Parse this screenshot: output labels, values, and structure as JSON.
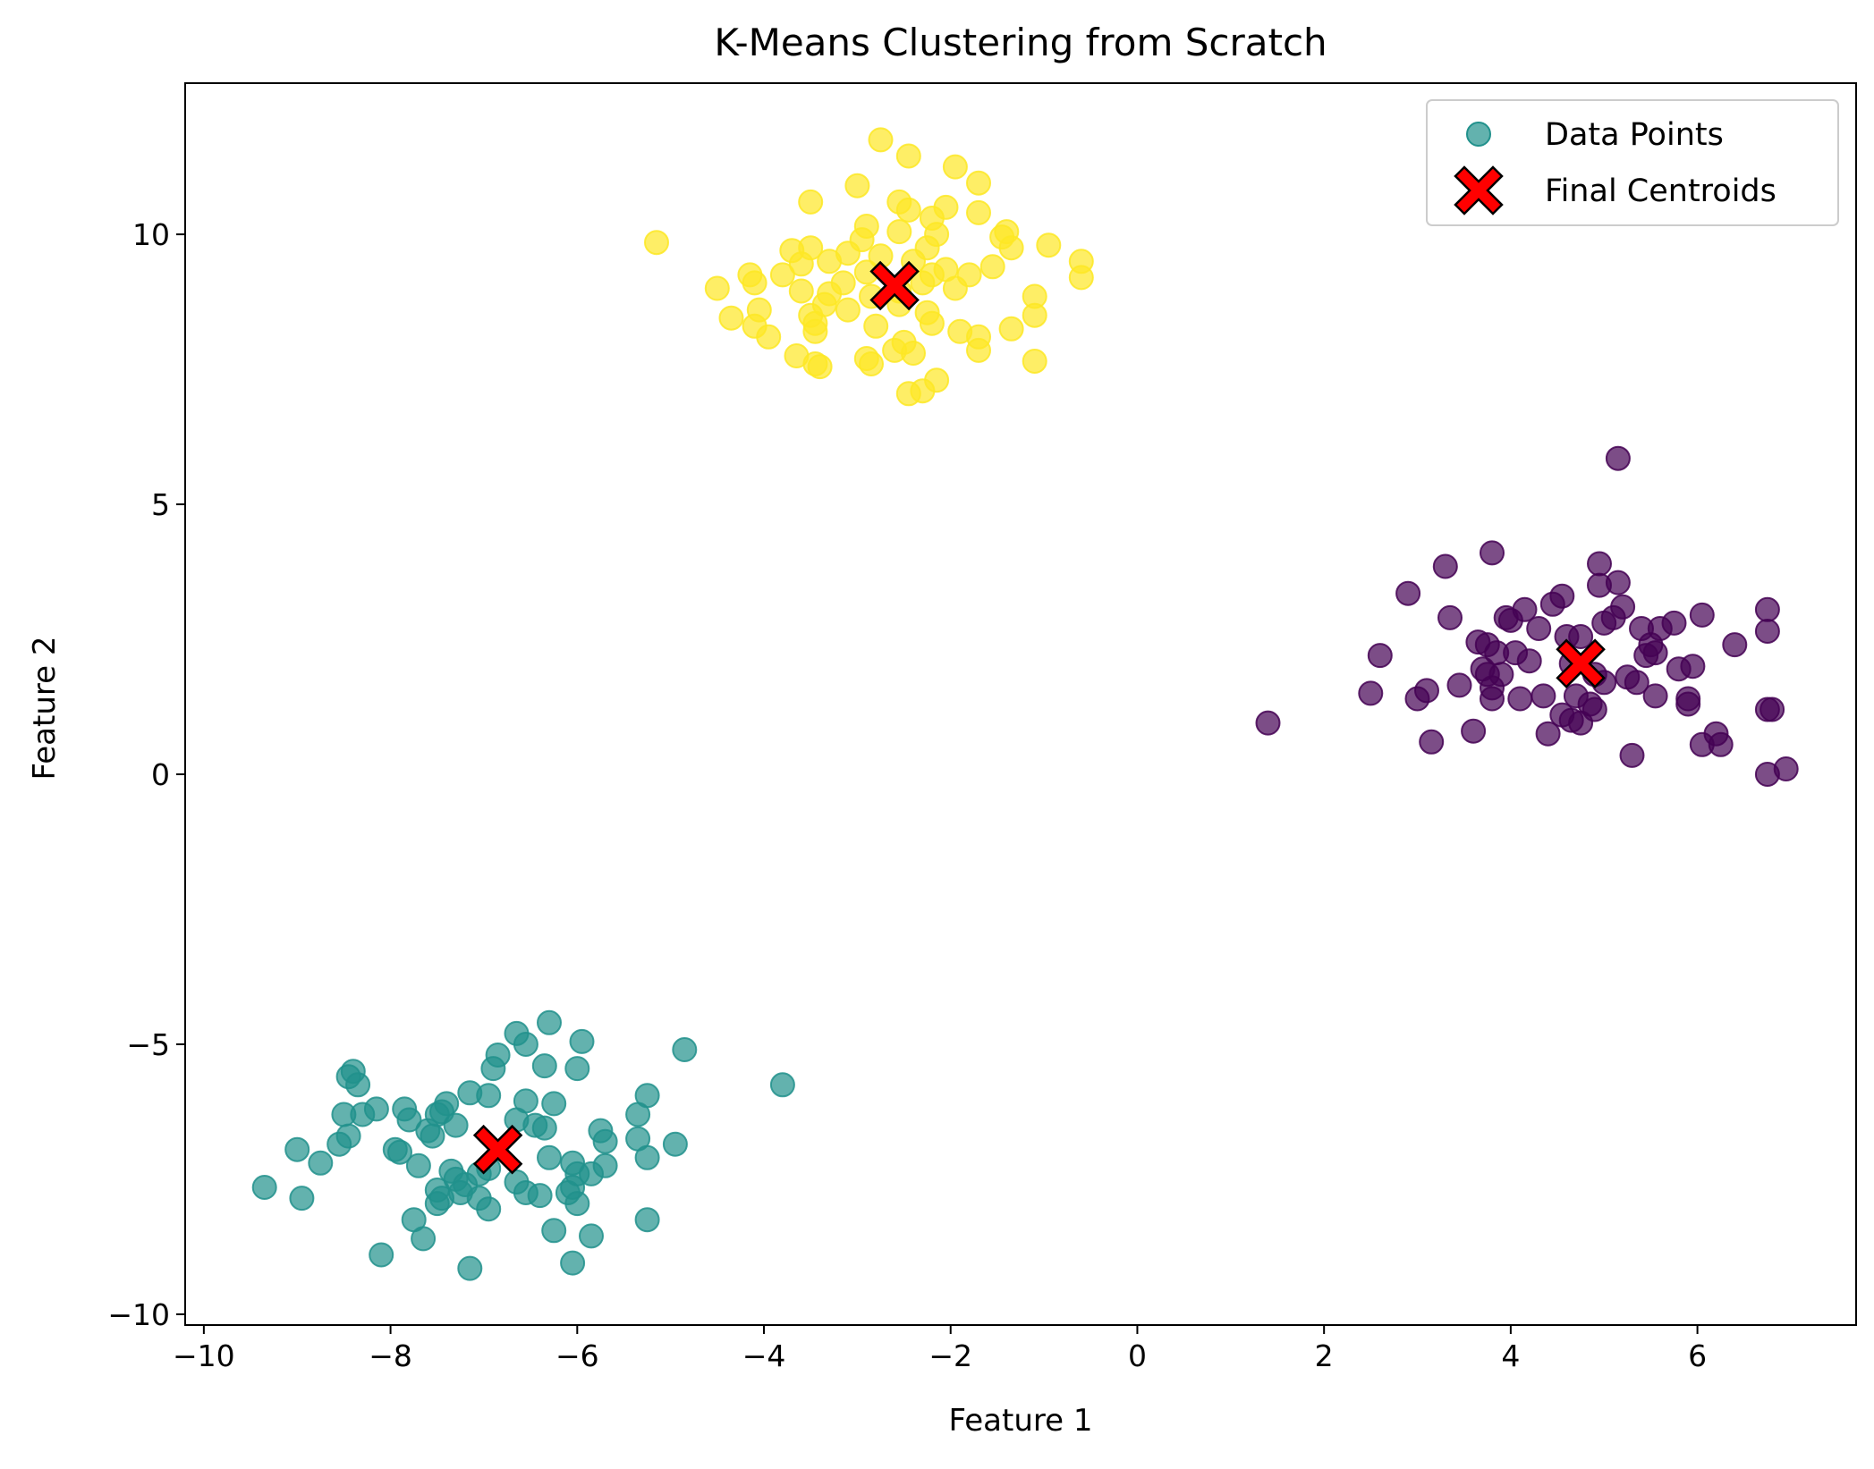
{
  "chart_data": {
    "type": "scatter",
    "title": "K-Means Clustering from Scratch",
    "xlabel": "Feature 1",
    "ylabel": "Feature 2",
    "xlim": [
      -10.2,
      7.7
    ],
    "ylim": [
      -10.2,
      12.8
    ],
    "x_ticks": [
      {
        "value": -10,
        "label": "−10"
      },
      {
        "value": -8,
        "label": "−8"
      },
      {
        "value": -6,
        "label": "−6"
      },
      {
        "value": -4,
        "label": "−4"
      },
      {
        "value": -2,
        "label": "−2"
      },
      {
        "value": 0,
        "label": "0"
      },
      {
        "value": 2,
        "label": "2"
      },
      {
        "value": 4,
        "label": "4"
      },
      {
        "value": 6,
        "label": "6"
      }
    ],
    "y_ticks": [
      {
        "value": -10,
        "label": "−10"
      },
      {
        "value": -5,
        "label": "−5"
      },
      {
        "value": 0,
        "label": "0"
      },
      {
        "value": 5,
        "label": "5"
      },
      {
        "value": 10,
        "label": "10"
      }
    ],
    "grid": false,
    "legend": {
      "position": "top-right",
      "entries": [
        {
          "label": "Data Points",
          "marker": "circle",
          "color": "#21918c"
        },
        {
          "label": "Final Centroids",
          "marker": "x",
          "color": "#ff0000"
        }
      ]
    },
    "colors": {
      "cluster_0": "#440154",
      "cluster_1": "#21918c",
      "cluster_2": "#fde725",
      "centroid_fill": "#ff0000",
      "centroid_edge": "#000000"
    },
    "series": [
      {
        "cluster": 0,
        "color": "#440154",
        "points": [
          [
            5.15,
            5.85
          ],
          [
            3.8,
            4.1
          ],
          [
            3.3,
            3.85
          ],
          [
            4.95,
            3.9
          ],
          [
            5.15,
            3.55
          ],
          [
            4.95,
            3.5
          ],
          [
            2.9,
            3.35
          ],
          [
            4.55,
            3.3
          ],
          [
            5.2,
            3.1
          ],
          [
            6.75,
            3.05
          ],
          [
            4.15,
            3.05
          ],
          [
            4.45,
            3.15
          ],
          [
            3.35,
            2.9
          ],
          [
            6.05,
            2.95
          ],
          [
            5.75,
            2.8
          ],
          [
            3.95,
            2.9
          ],
          [
            4.0,
            2.85
          ],
          [
            4.3,
            2.7
          ],
          [
            5.0,
            2.8
          ],
          [
            5.1,
            2.9
          ],
          [
            5.4,
            2.7
          ],
          [
            5.6,
            2.7
          ],
          [
            6.75,
            2.65
          ],
          [
            4.6,
            2.55
          ],
          [
            3.65,
            2.45
          ],
          [
            3.75,
            2.4
          ],
          [
            4.75,
            2.55
          ],
          [
            5.5,
            2.4
          ],
          [
            6.4,
            2.4
          ],
          [
            2.6,
            2.2
          ],
          [
            3.85,
            2.25
          ],
          [
            4.05,
            2.25
          ],
          [
            4.2,
            2.1
          ],
          [
            5.45,
            2.2
          ],
          [
            5.55,
            2.25
          ],
          [
            4.65,
            2.05
          ],
          [
            3.9,
            1.85
          ],
          [
            3.7,
            1.95
          ],
          [
            3.75,
            1.85
          ],
          [
            5.8,
            1.95
          ],
          [
            5.95,
            2.0
          ],
          [
            4.9,
            1.85
          ],
          [
            5.25,
            1.8
          ],
          [
            5.0,
            1.7
          ],
          [
            5.35,
            1.7
          ],
          [
            3.45,
            1.65
          ],
          [
            3.8,
            1.6
          ],
          [
            3.1,
            1.55
          ],
          [
            2.5,
            1.5
          ],
          [
            3.0,
            1.4
          ],
          [
            3.8,
            1.4
          ],
          [
            4.1,
            1.4
          ],
          [
            4.35,
            1.45
          ],
          [
            4.7,
            1.45
          ],
          [
            5.55,
            1.45
          ],
          [
            5.9,
            1.4
          ],
          [
            5.9,
            1.3
          ],
          [
            4.85,
            1.3
          ],
          [
            4.9,
            1.2
          ],
          [
            4.55,
            1.1
          ],
          [
            4.65,
            1.0
          ],
          [
            4.75,
            0.95
          ],
          [
            6.75,
            1.2
          ],
          [
            6.8,
            1.2
          ],
          [
            1.4,
            0.95
          ],
          [
            3.6,
            0.8
          ],
          [
            4.4,
            0.75
          ],
          [
            6.2,
            0.75
          ],
          [
            6.05,
            0.55
          ],
          [
            6.25,
            0.55
          ],
          [
            3.15,
            0.6
          ],
          [
            5.3,
            0.35
          ],
          [
            6.95,
            0.1
          ],
          [
            6.75,
            0.0
          ]
        ]
      },
      {
        "cluster": 1,
        "color": "#21918c",
        "points": [
          [
            -6.3,
            -4.6
          ],
          [
            -6.65,
            -4.8
          ],
          [
            -5.95,
            -4.95
          ],
          [
            -6.55,
            -5.0
          ],
          [
            -4.85,
            -5.1
          ],
          [
            -6.85,
            -5.2
          ],
          [
            -6.35,
            -5.4
          ],
          [
            -6.0,
            -5.45
          ],
          [
            -6.9,
            -5.45
          ],
          [
            -8.4,
            -5.5
          ],
          [
            -8.45,
            -5.6
          ],
          [
            -8.35,
            -5.75
          ],
          [
            -3.8,
            -5.75
          ],
          [
            -7.15,
            -5.9
          ],
          [
            -6.95,
            -5.95
          ],
          [
            -5.25,
            -5.95
          ],
          [
            -6.55,
            -6.05
          ],
          [
            -7.4,
            -6.1
          ],
          [
            -6.25,
            -6.1
          ],
          [
            -8.15,
            -6.2
          ],
          [
            -7.85,
            -6.2
          ],
          [
            -7.45,
            -6.25
          ],
          [
            -8.3,
            -6.3
          ],
          [
            -8.5,
            -6.3
          ],
          [
            -7.5,
            -6.3
          ],
          [
            -7.8,
            -6.4
          ],
          [
            -5.35,
            -6.3
          ],
          [
            -6.65,
            -6.4
          ],
          [
            -6.45,
            -6.5
          ],
          [
            -7.3,
            -6.5
          ],
          [
            -7.6,
            -6.6
          ],
          [
            -6.35,
            -6.55
          ],
          [
            -5.75,
            -6.6
          ],
          [
            -8.45,
            -6.7
          ],
          [
            -7.55,
            -6.7
          ],
          [
            -5.7,
            -6.8
          ],
          [
            -5.35,
            -6.75
          ],
          [
            -4.95,
            -6.85
          ],
          [
            -8.55,
            -6.85
          ],
          [
            -9.0,
            -6.95
          ],
          [
            -7.95,
            -6.95
          ],
          [
            -7.9,
            -7.0
          ],
          [
            -6.3,
            -7.1
          ],
          [
            -5.25,
            -7.1
          ],
          [
            -8.75,
            -7.2
          ],
          [
            -7.7,
            -7.25
          ],
          [
            -6.05,
            -7.2
          ],
          [
            -5.7,
            -7.25
          ],
          [
            -6.95,
            -7.3
          ],
          [
            -7.35,
            -7.35
          ],
          [
            -7.05,
            -7.4
          ],
          [
            -6.0,
            -7.4
          ],
          [
            -5.85,
            -7.4
          ],
          [
            -7.3,
            -7.5
          ],
          [
            -6.65,
            -7.55
          ],
          [
            -7.2,
            -7.6
          ],
          [
            -6.05,
            -7.65
          ],
          [
            -9.35,
            -7.65
          ],
          [
            -7.5,
            -7.7
          ],
          [
            -7.25,
            -7.75
          ],
          [
            -6.55,
            -7.75
          ],
          [
            -6.1,
            -7.75
          ],
          [
            -7.45,
            -7.85
          ],
          [
            -6.4,
            -7.8
          ],
          [
            -8.95,
            -7.85
          ],
          [
            -7.05,
            -7.85
          ],
          [
            -7.5,
            -7.95
          ],
          [
            -6.0,
            -7.95
          ],
          [
            -6.95,
            -8.05
          ],
          [
            -7.75,
            -8.25
          ],
          [
            -5.25,
            -8.25
          ],
          [
            -6.25,
            -8.45
          ],
          [
            -7.65,
            -8.6
          ],
          [
            -5.85,
            -8.55
          ],
          [
            -8.1,
            -8.9
          ],
          [
            -6.05,
            -9.05
          ],
          [
            -7.15,
            -9.15
          ]
        ]
      },
      {
        "cluster": 2,
        "color": "#fde725",
        "points": [
          [
            -2.75,
            11.75
          ],
          [
            -2.45,
            11.45
          ],
          [
            -1.95,
            11.25
          ],
          [
            -1.7,
            10.95
          ],
          [
            -3.0,
            10.9
          ],
          [
            -3.5,
            10.6
          ],
          [
            -2.55,
            10.6
          ],
          [
            -2.45,
            10.45
          ],
          [
            -2.05,
            10.5
          ],
          [
            -1.7,
            10.4
          ],
          [
            -2.2,
            10.3
          ],
          [
            -2.9,
            10.15
          ],
          [
            -2.55,
            10.05
          ],
          [
            -1.4,
            10.05
          ],
          [
            -2.15,
            10.0
          ],
          [
            -1.45,
            9.95
          ],
          [
            -2.95,
            9.9
          ],
          [
            -5.15,
            9.85
          ],
          [
            -0.95,
            9.8
          ],
          [
            -3.5,
            9.75
          ],
          [
            -2.25,
            9.75
          ],
          [
            -3.7,
            9.7
          ],
          [
            -1.35,
            9.75
          ],
          [
            -3.1,
            9.65
          ],
          [
            -2.75,
            9.6
          ],
          [
            -3.3,
            9.5
          ],
          [
            -2.4,
            9.5
          ],
          [
            -3.6,
            9.45
          ],
          [
            -0.6,
            9.5
          ],
          [
            -1.55,
            9.4
          ],
          [
            -2.05,
            9.35
          ],
          [
            -2.9,
            9.3
          ],
          [
            -4.15,
            9.25
          ],
          [
            -3.8,
            9.25
          ],
          [
            -2.2,
            9.25
          ],
          [
            -1.8,
            9.25
          ],
          [
            -0.6,
            9.2
          ],
          [
            -4.1,
            9.1
          ],
          [
            -3.15,
            9.1
          ],
          [
            -2.3,
            9.1
          ],
          [
            -4.5,
            9.0
          ],
          [
            -1.95,
            9.0
          ],
          [
            -3.6,
            8.95
          ],
          [
            -2.55,
            8.95
          ],
          [
            -3.3,
            8.9
          ],
          [
            -2.85,
            8.85
          ],
          [
            -1.1,
            8.85
          ],
          [
            -3.35,
            8.7
          ],
          [
            -2.55,
            8.7
          ],
          [
            -4.05,
            8.6
          ],
          [
            -3.1,
            8.6
          ],
          [
            -2.25,
            8.55
          ],
          [
            -3.5,
            8.5
          ],
          [
            -1.1,
            8.5
          ],
          [
            -4.35,
            8.45
          ],
          [
            -3.45,
            8.35
          ],
          [
            -2.2,
            8.35
          ],
          [
            -4.1,
            8.3
          ],
          [
            -2.8,
            8.3
          ],
          [
            -1.35,
            8.25
          ],
          [
            -1.9,
            8.2
          ],
          [
            -3.45,
            8.2
          ],
          [
            -1.7,
            8.1
          ],
          [
            -3.95,
            8.1
          ],
          [
            -2.5,
            8.0
          ],
          [
            -2.6,
            7.85
          ],
          [
            -1.7,
            7.85
          ],
          [
            -2.4,
            7.8
          ],
          [
            -3.65,
            7.75
          ],
          [
            -2.9,
            7.7
          ],
          [
            -3.45,
            7.6
          ],
          [
            -1.1,
            7.65
          ],
          [
            -3.4,
            7.55
          ],
          [
            -2.85,
            7.6
          ],
          [
            -2.15,
            7.3
          ],
          [
            -2.3,
            7.1
          ],
          [
            -2.45,
            7.05
          ]
        ]
      }
    ],
    "centroids": [
      {
        "x": 4.75,
        "y": 2.05
      },
      {
        "x": -6.85,
        "y": -6.95
      },
      {
        "x": -2.6,
        "y": 9.05
      }
    ]
  }
}
